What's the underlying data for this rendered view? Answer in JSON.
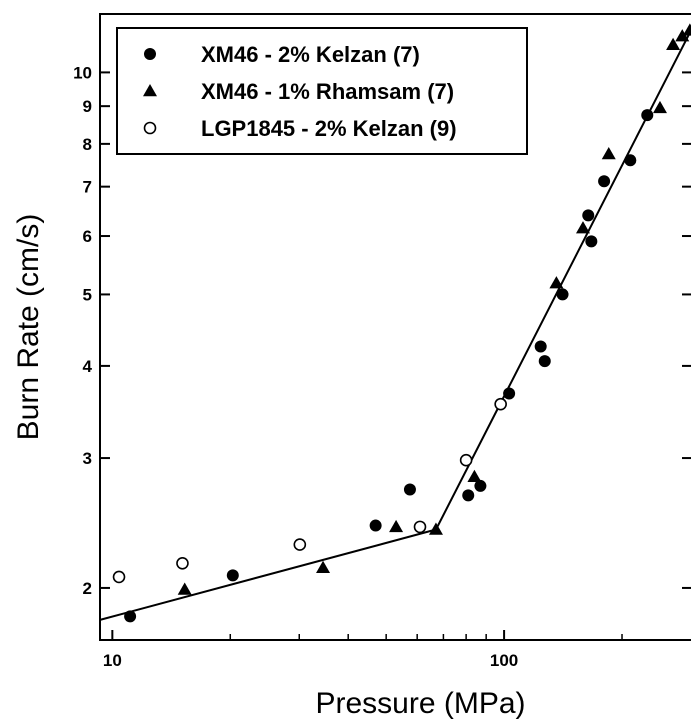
{
  "chart_data": {
    "type": "scatter",
    "xlabel": "Pressure (MPa)",
    "ylabel": "Burn Rate (cm/s)",
    "xscale": "log",
    "yscale": "log",
    "xlim": [
      9.3,
      300
    ],
    "ylim": [
      1.7,
      12
    ],
    "x_ticks": [
      {
        "value": 10,
        "label": "10"
      },
      {
        "value": 100,
        "label": "100"
      }
    ],
    "x_minor_ticks": [
      20,
      30,
      40,
      50,
      60,
      70,
      80,
      90,
      200
    ],
    "y_ticks": [
      {
        "value": 2,
        "label": "2"
      },
      {
        "value": 3,
        "label": "3"
      },
      {
        "value": 4,
        "label": "4"
      },
      {
        "value": 5,
        "label": "5"
      },
      {
        "value": 6,
        "label": "6"
      },
      {
        "value": 7,
        "label": "7"
      },
      {
        "value": 8,
        "label": "8"
      },
      {
        "value": 9,
        "label": "9"
      },
      {
        "value": 10,
        "label": "10"
      }
    ],
    "grid": false,
    "legend_position": "top-left",
    "series": [
      {
        "name": "XM46 - 2% Kelzan (7)",
        "marker": "filled-circle",
        "points": [
          [
            11.1,
            1.83
          ],
          [
            20.3,
            2.08
          ],
          [
            47,
            2.43
          ],
          [
            57.5,
            2.72
          ],
          [
            81,
            2.67
          ],
          [
            87,
            2.75
          ],
          [
            103,
            3.67
          ],
          [
            124,
            4.25
          ],
          [
            127,
            4.06
          ],
          [
            141,
            5.0
          ],
          [
            164,
            6.4
          ],
          [
            167,
            5.9
          ],
          [
            180,
            7.12
          ],
          [
            210,
            7.6
          ],
          [
            232,
            8.75
          ]
        ]
      },
      {
        "name": "XM46 - 1% Rhamsam (7)",
        "marker": "filled-triangle",
        "points": [
          [
            15.3,
            1.99
          ],
          [
            34.5,
            2.13
          ],
          [
            53,
            2.42
          ],
          [
            67,
            2.4
          ],
          [
            84,
            2.83
          ],
          [
            136,
            5.18
          ],
          [
            159,
            6.15
          ],
          [
            185,
            7.75
          ],
          [
            250,
            8.95
          ],
          [
            270,
            10.9
          ],
          [
            285,
            11.2
          ],
          [
            298,
            11.4
          ]
        ]
      },
      {
        "name": "LGP1845 - 2% Kelzan (9)",
        "marker": "open-circle",
        "points": [
          [
            10.4,
            2.07
          ],
          [
            15.1,
            2.16
          ],
          [
            30.1,
            2.29
          ],
          [
            61,
            2.42
          ],
          [
            80,
            2.98
          ],
          [
            98,
            3.55
          ]
        ]
      }
    ],
    "fit_line": [
      [
        9.3,
        1.81
      ],
      [
        67,
        2.4
      ],
      [
        300,
        11.4
      ]
    ]
  }
}
